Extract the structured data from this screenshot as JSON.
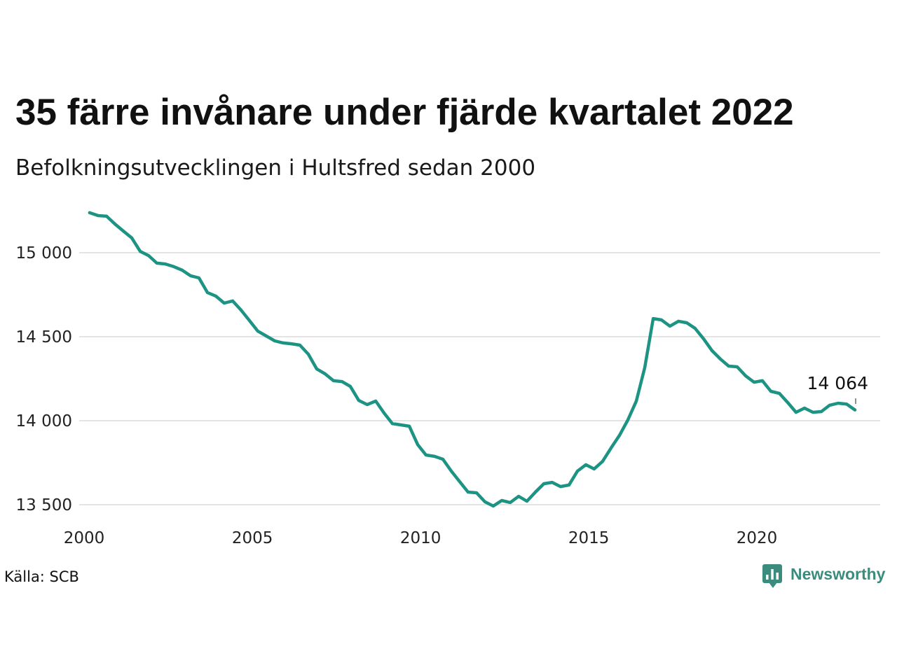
{
  "chart_data": {
    "type": "line",
    "title": "35 färre invånare under fjärde kvartalet 2022",
    "subtitle": "Befolkningsutvecklingen i Hultsfred sedan 2000",
    "xlabel": "",
    "ylabel": "",
    "x": [
      "2000-03-01",
      "2000-06-01",
      "2000-09-01",
      "2000-12-01",
      "2001-03-01",
      "2001-06-01",
      "2001-09-01",
      "2001-12-01",
      "2002-03-01",
      "2002-06-01",
      "2002-09-01",
      "2002-12-01",
      "2003-03-01",
      "2003-06-01",
      "2003-09-01",
      "2003-12-01",
      "2004-03-01",
      "2004-06-01",
      "2004-09-01",
      "2004-12-01",
      "2005-03-01",
      "2005-06-01",
      "2005-09-01",
      "2005-12-01",
      "2006-03-01",
      "2006-06-01",
      "2006-09-01",
      "2006-12-01",
      "2007-03-01",
      "2007-06-01",
      "2007-09-01",
      "2007-12-01",
      "2008-03-01",
      "2008-06-01",
      "2008-09-01",
      "2008-12-01",
      "2009-03-01",
      "2009-06-01",
      "2009-09-01",
      "2009-12-01",
      "2010-03-01",
      "2010-06-01",
      "2010-09-01",
      "2010-12-01",
      "2011-03-01",
      "2011-06-01",
      "2011-09-01",
      "2011-12-01",
      "2012-03-01",
      "2012-06-01",
      "2012-09-01",
      "2012-12-01",
      "2013-03-01",
      "2013-06-01",
      "2013-09-01",
      "2013-12-01",
      "2014-03-01",
      "2014-06-01",
      "2014-09-01",
      "2014-12-01",
      "2015-03-01",
      "2015-06-01",
      "2015-09-01",
      "2015-12-01",
      "2016-03-01",
      "2016-06-01",
      "2016-09-01",
      "2016-12-01",
      "2017-03-01",
      "2017-06-01",
      "2017-09-01",
      "2017-12-01",
      "2018-03-01",
      "2018-06-01",
      "2018-09-01",
      "2018-12-01",
      "2019-03-01",
      "2019-06-01",
      "2019-09-01",
      "2019-12-01",
      "2020-03-01",
      "2020-06-01",
      "2020-09-01",
      "2020-12-01",
      "2021-03-01",
      "2021-06-01",
      "2021-09-01",
      "2021-12-01",
      "2022-03-01",
      "2022-06-01",
      "2022-09-01",
      "2022-12-01"
    ],
    "series": [
      {
        "values": [
          15238,
          15221,
          15217,
          15171,
          15129,
          15088,
          15008,
          14983,
          14938,
          14933,
          14917,
          14896,
          14863,
          14850,
          14763,
          14742,
          14700,
          14713,
          14658,
          14596,
          14533,
          14504,
          14475,
          14463,
          14458,
          14450,
          14396,
          14308,
          14279,
          14238,
          14233,
          14204,
          14121,
          14096,
          14117,
          14046,
          13983,
          13975,
          13967,
          13858,
          13796,
          13788,
          13771,
          13700,
          13638,
          13575,
          13571,
          13517,
          13492,
          13525,
          13513,
          13550,
          13521,
          13575,
          13625,
          13633,
          13608,
          13617,
          13700,
          13738,
          13713,
          13758,
          13838,
          13913,
          14004,
          14117,
          14317,
          14608,
          14600,
          14563,
          14592,
          14583,
          14550,
          14488,
          14417,
          14367,
          14325,
          14321,
          14267,
          14229,
          14238,
          14175,
          14163,
          14108,
          14050,
          14075,
          14050,
          14054,
          14092,
          14104,
          14099,
          14064
        ]
      }
    ],
    "xlim": [
      "1999-11-01",
      "2023-09-01"
    ],
    "ylim": [
      13450,
      15250
    ],
    "x_ticks": [
      "2000",
      "2005",
      "2010",
      "2015",
      "2020"
    ],
    "y_ticks": [
      13500,
      14000,
      14500,
      15000
    ],
    "y_tick_labels": [
      "13 500",
      "14 000",
      "14 500",
      "15 000"
    ],
    "grid_y": true,
    "grid_x": false,
    "annotation": {
      "text": "14 064",
      "x": "2022-12-01",
      "y": 14064
    },
    "source": "Källa: SCB"
  },
  "brand": {
    "name": "Newsworthy",
    "icon": "newsworthy-logo-icon"
  },
  "colors": {
    "line": "#1c9383",
    "grid": "#e4e4e4",
    "text": "#111111",
    "brand": "#3c8c7e",
    "logo_icon_fg": "#ffffff"
  }
}
